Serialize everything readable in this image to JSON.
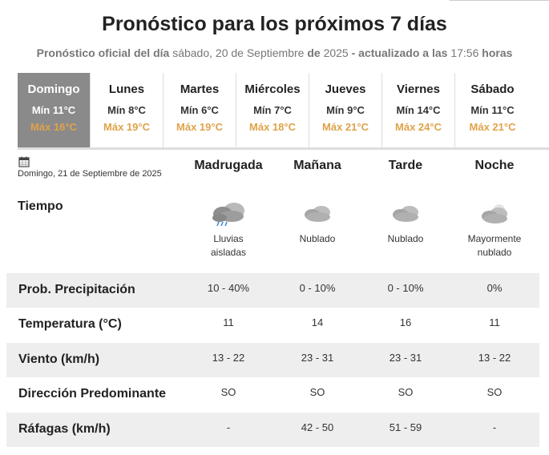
{
  "header": {
    "title": "Pronóstico para los próximos 7 días",
    "subtitle_part1": "Pronóstico oficial del día",
    "subtitle_part2": "sábado, 20 de Septiembre",
    "subtitle_part3": "de",
    "subtitle_part4": "2025",
    "subtitle_part5": "- actualizado a las",
    "subtitle_part6": "17:56",
    "subtitle_part7": "horas"
  },
  "days": [
    {
      "name": "Domingo",
      "min": "Mín 11°C",
      "max": "Máx 16°C"
    },
    {
      "name": "Lunes",
      "min": "Mín 8°C",
      "max": "Máx 19°C"
    },
    {
      "name": "Martes",
      "min": "Mín 6°C",
      "max": "Máx 19°C"
    },
    {
      "name": "Miércoles",
      "min": "Mín 7°C",
      "max": "Máx 18°C"
    },
    {
      "name": "Jueves",
      "min": "Mín 9°C",
      "max": "Máx 21°C"
    },
    {
      "name": "Viernes",
      "min": "Mín 14°C",
      "max": "Máx 24°C"
    },
    {
      "name": "Sábado",
      "min": "Mín 11°C",
      "max": "Máx 21°C"
    }
  ],
  "selected_date": "Domingo, 21 de Septiembre de 2025",
  "periods": [
    "Madrugada",
    "Mañana",
    "Tarde",
    "Noche"
  ],
  "tiempo": {
    "label": "Tiempo",
    "items": [
      {
        "icon": "rain-cloud-icon",
        "line1": "Lluvias",
        "line2": "aisladas"
      },
      {
        "icon": "cloud-icon",
        "line1": "Nublado",
        "line2": ""
      },
      {
        "icon": "cloud-icon",
        "line1": "Nublado",
        "line2": ""
      },
      {
        "icon": "night-cloud-icon",
        "line1": "Mayormente",
        "line2": "nublado"
      }
    ]
  },
  "rows": [
    {
      "label": "Prob. Precipitación",
      "values": [
        "10 - 40%",
        "0 - 10%",
        "0 - 10%",
        "0%"
      ]
    },
    {
      "label": "Temperatura (°C)",
      "values": [
        "11",
        "14",
        "16",
        "11"
      ]
    },
    {
      "label": "Viento (km/h)",
      "values": [
        "13 - 22",
        "23 - 31",
        "23 - 31",
        "13 - 22"
      ]
    },
    {
      "label": "Dirección Predominante",
      "values": [
        "SO",
        "SO",
        "SO",
        "SO"
      ]
    },
    {
      "label": "Ráfagas (km/h)",
      "values": [
        "-",
        "42 - 50",
        "51 - 59",
        "-"
      ]
    }
  ],
  "colors": {
    "active_day_bg": "#8a8a8a",
    "max_temp": "#e0a24a",
    "row_shade": "#eeeeee"
  }
}
